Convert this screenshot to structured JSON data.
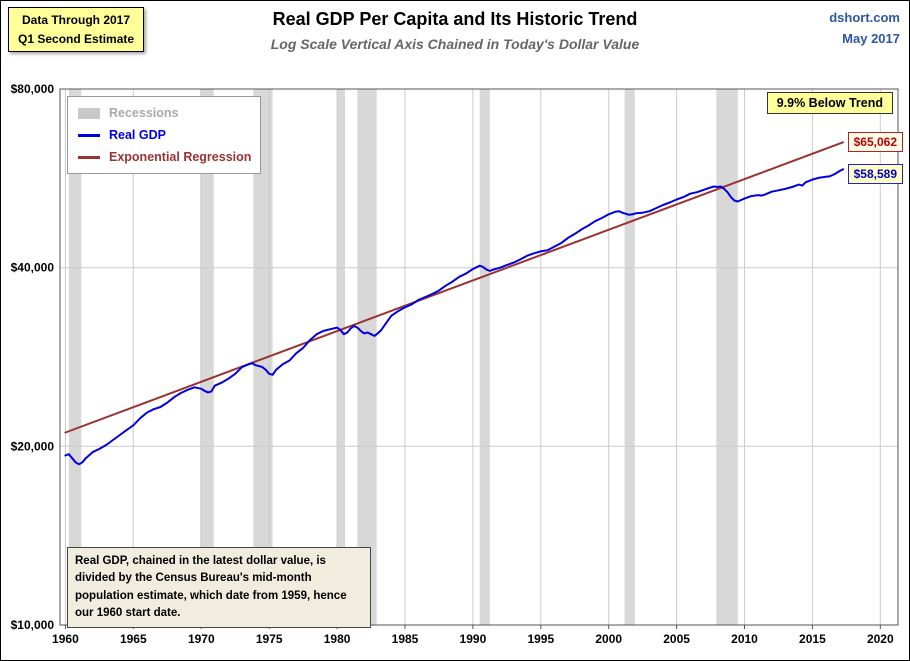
{
  "page": {
    "badge_line1": "Data Through 2017",
    "badge_line2": "Q1 Second Estimate",
    "title": "Real GDP Per Capita and Its Historic Trend",
    "subtitle": "Log Scale Vertical Axis Chained in Today's Dollar Value",
    "source": "dshort.com",
    "date": "May 2017"
  },
  "chart_data": {
    "type": "line",
    "title": "Real GDP Per Capita and Its Historic Trend",
    "subtitle": "Log Scale Vertical Axis Chained in Today's Dollar Value",
    "xlabel": "",
    "ylabel": "",
    "x_axis": {
      "min": 1959.6,
      "max": 2021.3,
      "ticks": [
        1960,
        1965,
        1970,
        1975,
        1980,
        1985,
        1990,
        1995,
        2000,
        2005,
        2010,
        2015,
        2020
      ]
    },
    "y_axis": {
      "scale": "log",
      "min": 10000,
      "max": 80000,
      "tick_values": [
        10000,
        20000,
        40000,
        80000
      ],
      "tick_labels": [
        "$10,000",
        "$20,000",
        "$40,000",
        "$80,000"
      ]
    },
    "grid": true,
    "legend_position": "top-left",
    "legend": [
      {
        "label": "Recessions",
        "color": "#C9C9C9",
        "type": "band"
      },
      {
        "label": "Real GDP",
        "color": "#0000E0",
        "type": "line"
      },
      {
        "label": "Exponential Regression",
        "color": "#993333",
        "type": "line"
      }
    ],
    "recession_color": "#D8D8D8",
    "recessions": [
      [
        1960.25,
        1961.17
      ],
      [
        1969.92,
        1970.92
      ],
      [
        1973.83,
        1975.25
      ],
      [
        1980.0,
        1980.58
      ],
      [
        1981.5,
        1982.92
      ],
      [
        1990.5,
        1991.25
      ],
      [
        2001.17,
        2001.92
      ],
      [
        2007.92,
        2009.5
      ]
    ],
    "annotations": {
      "below_trend": "9.9% Below Trend",
      "trend_end_label": "$65,062",
      "gdp_end_label": "$58,589",
      "note": "Real GDP, chained in the latest dollar value, is divided by the Census Bureau's mid-month population estimate, which date from 1959, hence our 1960 start date."
    },
    "series": [
      {
        "name": "Exponential Regression",
        "color": "#993333",
        "points": [
          [
            1960.0,
            21100
          ],
          [
            2017.25,
            65062
          ]
        ]
      },
      {
        "name": "Real GDP",
        "color": "#0000E0",
        "points": [
          [
            1960.0,
            19300
          ],
          [
            1960.25,
            19400
          ],
          [
            1960.5,
            19100
          ],
          [
            1960.75,
            18800
          ],
          [
            1961.0,
            18650
          ],
          [
            1961.25,
            18800
          ],
          [
            1961.5,
            19100
          ],
          [
            1962.0,
            19550
          ],
          [
            1962.5,
            19800
          ],
          [
            1963.0,
            20100
          ],
          [
            1963.5,
            20500
          ],
          [
            1964.0,
            20900
          ],
          [
            1964.5,
            21300
          ],
          [
            1965.0,
            21700
          ],
          [
            1965.5,
            22300
          ],
          [
            1966.0,
            22800
          ],
          [
            1966.5,
            23100
          ],
          [
            1967.0,
            23300
          ],
          [
            1967.5,
            23700
          ],
          [
            1968.0,
            24200
          ],
          [
            1968.5,
            24600
          ],
          [
            1969.0,
            24900
          ],
          [
            1969.5,
            25150
          ],
          [
            1970.0,
            25000
          ],
          [
            1970.25,
            24800
          ],
          [
            1970.5,
            24650
          ],
          [
            1970.75,
            24750
          ],
          [
            1971.0,
            25300
          ],
          [
            1971.5,
            25600
          ],
          [
            1972.0,
            26000
          ],
          [
            1972.5,
            26500
          ],
          [
            1973.0,
            27200
          ],
          [
            1973.5,
            27500
          ],
          [
            1973.75,
            27600
          ],
          [
            1974.0,
            27400
          ],
          [
            1974.25,
            27300
          ],
          [
            1974.5,
            27200
          ],
          [
            1974.75,
            26900
          ],
          [
            1975.0,
            26500
          ],
          [
            1975.25,
            26400
          ],
          [
            1975.5,
            26900
          ],
          [
            1976.0,
            27500
          ],
          [
            1976.5,
            27900
          ],
          [
            1977.0,
            28700
          ],
          [
            1977.5,
            29300
          ],
          [
            1978.0,
            30200
          ],
          [
            1978.5,
            30900
          ],
          [
            1979.0,
            31300
          ],
          [
            1979.5,
            31500
          ],
          [
            1980.0,
            31700
          ],
          [
            1980.25,
            31400
          ],
          [
            1980.5,
            30900
          ],
          [
            1980.75,
            31100
          ],
          [
            1981.0,
            31600
          ],
          [
            1981.25,
            31900
          ],
          [
            1981.5,
            31700
          ],
          [
            1981.75,
            31300
          ],
          [
            1982.0,
            31000
          ],
          [
            1982.25,
            31100
          ],
          [
            1982.5,
            30900
          ],
          [
            1982.75,
            30700
          ],
          [
            1983.0,
            31000
          ],
          [
            1983.25,
            31400
          ],
          [
            1983.5,
            32000
          ],
          [
            1983.75,
            32600
          ],
          [
            1984.0,
            33200
          ],
          [
            1984.5,
            33800
          ],
          [
            1985.0,
            34300
          ],
          [
            1985.5,
            34700
          ],
          [
            1986.0,
            35300
          ],
          [
            1986.5,
            35700
          ],
          [
            1987.0,
            36100
          ],
          [
            1987.5,
            36600
          ],
          [
            1988.0,
            37300
          ],
          [
            1988.5,
            37900
          ],
          [
            1989.0,
            38600
          ],
          [
            1989.5,
            39100
          ],
          [
            1990.0,
            39800
          ],
          [
            1990.5,
            40300
          ],
          [
            1990.75,
            40100
          ],
          [
            1991.0,
            39700
          ],
          [
            1991.25,
            39500
          ],
          [
            1991.5,
            39700
          ],
          [
            1992.0,
            40000
          ],
          [
            1992.5,
            40400
          ],
          [
            1993.0,
            40800
          ],
          [
            1993.5,
            41300
          ],
          [
            1994.0,
            41900
          ],
          [
            1994.5,
            42300
          ],
          [
            1995.0,
            42600
          ],
          [
            1995.5,
            42800
          ],
          [
            1996.0,
            43400
          ],
          [
            1996.5,
            44000
          ],
          [
            1997.0,
            44900
          ],
          [
            1997.5,
            45600
          ],
          [
            1998.0,
            46400
          ],
          [
            1998.5,
            47100
          ],
          [
            1999.0,
            47900
          ],
          [
            1999.5,
            48500
          ],
          [
            2000.0,
            49200
          ],
          [
            2000.5,
            49700
          ],
          [
            2000.75,
            49800
          ],
          [
            2001.0,
            49500
          ],
          [
            2001.5,
            49100
          ],
          [
            2001.75,
            49200
          ],
          [
            2002.0,
            49400
          ],
          [
            2002.5,
            49500
          ],
          [
            2003.0,
            49800
          ],
          [
            2003.5,
            50400
          ],
          [
            2004.0,
            51000
          ],
          [
            2004.5,
            51500
          ],
          [
            2005.0,
            52100
          ],
          [
            2005.5,
            52600
          ],
          [
            2006.0,
            53300
          ],
          [
            2006.5,
            53600
          ],
          [
            2007.0,
            54100
          ],
          [
            2007.5,
            54600
          ],
          [
            2007.75,
            54800
          ],
          [
            2008.0,
            54700
          ],
          [
            2008.25,
            54800
          ],
          [
            2008.5,
            54300
          ],
          [
            2008.75,
            53600
          ],
          [
            2009.0,
            52600
          ],
          [
            2009.25,
            51900
          ],
          [
            2009.5,
            51700
          ],
          [
            2009.75,
            52000
          ],
          [
            2010.0,
            52300
          ],
          [
            2010.5,
            52800
          ],
          [
            2011.0,
            53000
          ],
          [
            2011.25,
            52900
          ],
          [
            2011.5,
            53100
          ],
          [
            2012.0,
            53700
          ],
          [
            2012.5,
            54000
          ],
          [
            2013.0,
            54300
          ],
          [
            2013.5,
            54700
          ],
          [
            2014.0,
            55200
          ],
          [
            2014.25,
            55000
          ],
          [
            2014.5,
            55700
          ],
          [
            2015.0,
            56300
          ],
          [
            2015.5,
            56700
          ],
          [
            2016.0,
            56900
          ],
          [
            2016.25,
            57000
          ],
          [
            2016.5,
            57300
          ],
          [
            2016.75,
            57700
          ],
          [
            2017.0,
            58200
          ],
          [
            2017.25,
            58589
          ]
        ]
      }
    ]
  }
}
